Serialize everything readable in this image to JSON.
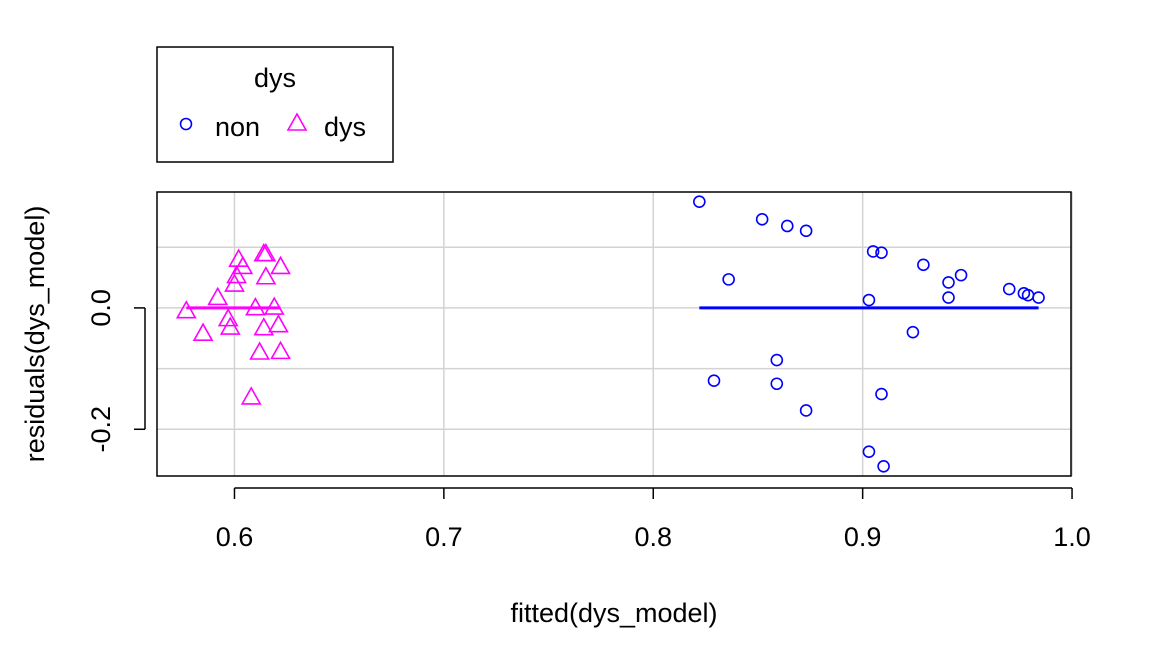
{
  "chart_data": {
    "type": "scatter",
    "title": "",
    "xlabel": "fitted(dys_model)",
    "ylabel": "residuals(dys_model)",
    "xlim": [
      0.563,
      0.9995
    ],
    "ylim": [
      -0.277,
      0.191
    ],
    "x_ticks": [
      0.6,
      0.7,
      0.8,
      0.9,
      1.0
    ],
    "x_tick_labels": [
      "0.6",
      "0.7",
      "0.8",
      "0.9",
      "1.0"
    ],
    "y_ticks": [
      -0.2,
      0.0
    ],
    "y_tick_labels": [
      "-0.2",
      "0.0"
    ],
    "grid_x": [
      0.6,
      0.7,
      0.8,
      0.9,
      1.0
    ],
    "grid_y": [
      -0.2,
      -0.1,
      0.0,
      0.1
    ],
    "grid": true,
    "legend": {
      "title": "dys",
      "position": "top-left",
      "entries": [
        "non",
        "dys"
      ]
    },
    "series": [
      {
        "name": "non",
        "marker": "circle",
        "color": "#0000FF",
        "x": [
          0.822,
          0.836,
          0.829,
          0.852,
          0.859,
          0.859,
          0.864,
          0.873,
          0.873,
          0.903,
          0.903,
          0.905,
          0.909,
          0.909,
          0.91,
          0.924,
          0.929,
          0.941,
          0.941,
          0.947,
          0.97,
          0.977,
          0.979,
          0.984
        ],
        "y": [
          0.175,
          0.047,
          -0.12,
          0.146,
          -0.086,
          -0.125,
          0.135,
          0.127,
          -0.169,
          0.013,
          -0.237,
          0.093,
          0.091,
          -0.142,
          -0.261,
          -0.04,
          0.071,
          0.042,
          0.017,
          0.054,
          0.031,
          0.024,
          0.021,
          0.017
        ]
      },
      {
        "name": "dys",
        "marker": "triangle",
        "color": "#FF00FF",
        "x": [
          0.577,
          0.585,
          0.592,
          0.597,
          0.598,
          0.6,
          0.601,
          0.602,
          0.604,
          0.608,
          0.61,
          0.612,
          0.614,
          0.614,
          0.615,
          0.615,
          0.619,
          0.621,
          0.622,
          0.622
        ],
        "y": [
          -0.003,
          -0.04,
          0.019,
          -0.016,
          -0.03,
          0.041,
          0.055,
          0.082,
          0.07,
          -0.145,
          0.002,
          -0.071,
          -0.031,
          0.091,
          0.053,
          0.091,
          0.003,
          -0.026,
          0.07,
          -0.07
        ]
      }
    ],
    "lines": [
      {
        "series": "non",
        "color": "#0000FF",
        "x": [
          0.822,
          0.984
        ],
        "y": [
          0.0,
          0.0
        ]
      },
      {
        "series": "dys",
        "color": "#FF00FF",
        "x": [
          0.577,
          0.622
        ],
        "y": [
          0.0,
          0.0
        ]
      }
    ]
  }
}
